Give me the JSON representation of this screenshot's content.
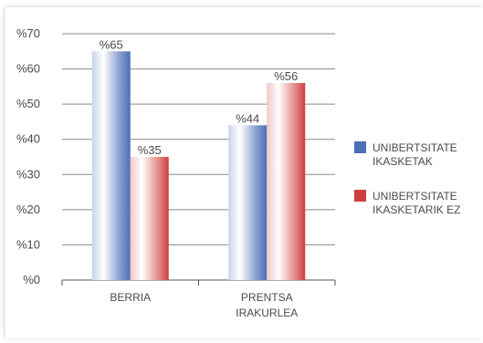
{
  "chart_data": {
    "type": "bar",
    "categories": [
      [
        "BERRIA"
      ],
      [
        "PRENTSA",
        "IRAKURLEA"
      ]
    ],
    "series": [
      {
        "name": [
          "UNIBERTSITATE",
          "IKASKETAK"
        ],
        "color": "#4a6fb5",
        "values": [
          65,
          44
        ],
        "value_labels": [
          "%65",
          "%44"
        ]
      },
      {
        "name": [
          "UNIBERTSITATE",
          "IKASKETARIK EZ"
        ],
        "color": "#cf3f3f",
        "values": [
          35,
          56
        ],
        "value_labels": [
          "%35",
          "%56"
        ]
      }
    ],
    "ylim": [
      0,
      70
    ],
    "yticks": [
      0,
      10,
      20,
      30,
      40,
      50,
      60,
      70
    ],
    "ytick_labels": [
      "%0",
      "%10",
      "%20",
      "%30",
      "%40",
      "%50",
      "%60",
      "%70"
    ],
    "grid": true,
    "legend_position": "right"
  }
}
